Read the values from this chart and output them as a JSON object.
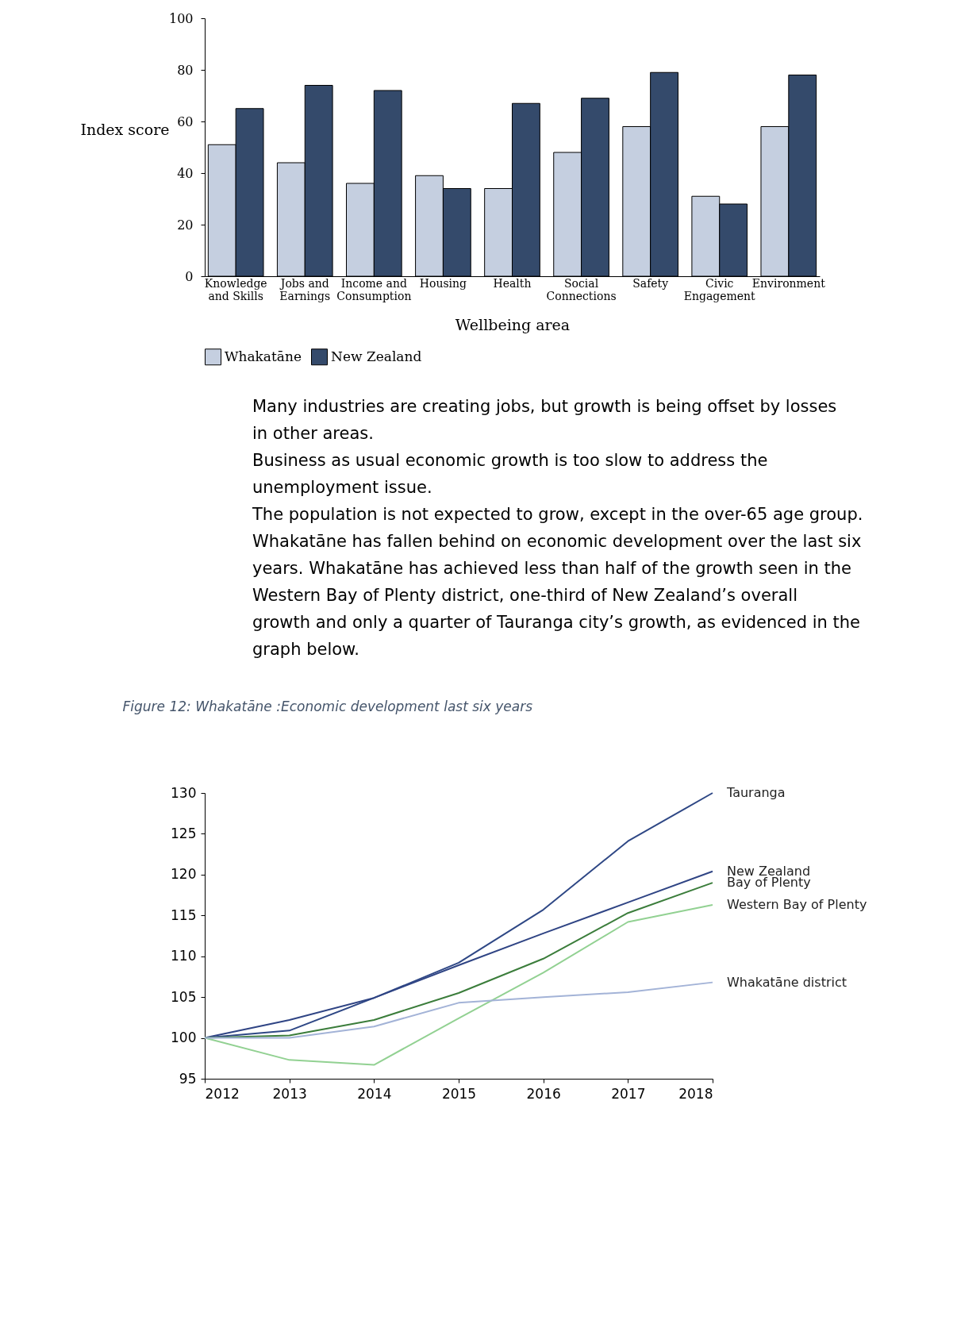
{
  "chart_data": [
    {
      "type": "bar",
      "xlabel": "Wellbeing area",
      "ylabel": "Index score",
      "categories": [
        "Knowledge and Skills",
        "Jobs and Earnings",
        "Income and Consumption",
        "Housing",
        "Health",
        "Social Connections",
        "Safety",
        "Civic Engagement",
        "Environment"
      ],
      "series": [
        {
          "name": "Whakatāne",
          "color": "#c5cfe0",
          "values": [
            51,
            44,
            36,
            39,
            34,
            48,
            58,
            31,
            58
          ]
        },
        {
          "name": "New Zealand",
          "color": "#344a6b",
          "values": [
            65,
            74,
            72,
            34,
            67,
            69,
            79,
            28,
            78
          ]
        }
      ],
      "ylim": [
        0,
        100
      ],
      "yticks": [
        0,
        20,
        40,
        60,
        80,
        100
      ],
      "legend": "bottom",
      "grid": false
    },
    {
      "type": "other",
      "annotations": [
        "Many industries are creating jobs, but growth is being offset by losses in other areas.",
        "Business as usual economic growth is too slow to address the unemployment issue.",
        "The population is not expected to grow, except in the over-65 age group.",
        "Whakatāne has fallen behind on economic development over the last six years.  Whakatāne has achieved less than half of the growth seen in the Western Bay of Plenty district, one-third of New Zealand’s overall growth and only a quarter of Tauranga city’s growth, as evidenced in the graph below."
      ]
    },
    {
      "type": "line",
      "title": "Figure 12: Whakatāne :Economic development last six years",
      "x": [
        2012,
        2013,
        2014,
        2015,
        2016,
        2017,
        2018
      ],
      "series": [
        {
          "name": "Tauranga",
          "color": "#2e4785",
          "values": [
            100,
            100.9,
            104.9,
            109.2,
            115.7,
            124.1,
            130
          ]
        },
        {
          "name": "New Zealand",
          "color": "#2f4484",
          "values": [
            100,
            102.2,
            104.9,
            108.9,
            112.8,
            116.6,
            120.4
          ]
        },
        {
          "name": "Bay of Plenty",
          "color": "#3b7d3b",
          "values": [
            100,
            100.3,
            102.2,
            105.5,
            109.7,
            115.3,
            119.0
          ]
        },
        {
          "name": "Western Bay of Plenty",
          "color": "#92d192",
          "values": [
            100,
            97.3,
            96.7,
            102.4,
            108.0,
            114.2,
            116.3
          ]
        },
        {
          "name": "Whakatāne district",
          "color": "#a3b3d7",
          "values": [
            100,
            100.0,
            101.4,
            104.3,
            105.0,
            105.6,
            106.8
          ]
        }
      ],
      "xlim": [
        2012,
        2018
      ],
      "xticks": [
        2012,
        2013,
        2014,
        2015,
        2016,
        2017,
        2018
      ],
      "ylim": [
        95,
        130
      ],
      "yticks": [
        95,
        100,
        105,
        110,
        115,
        120,
        125,
        130
      ],
      "grid": false
    }
  ]
}
